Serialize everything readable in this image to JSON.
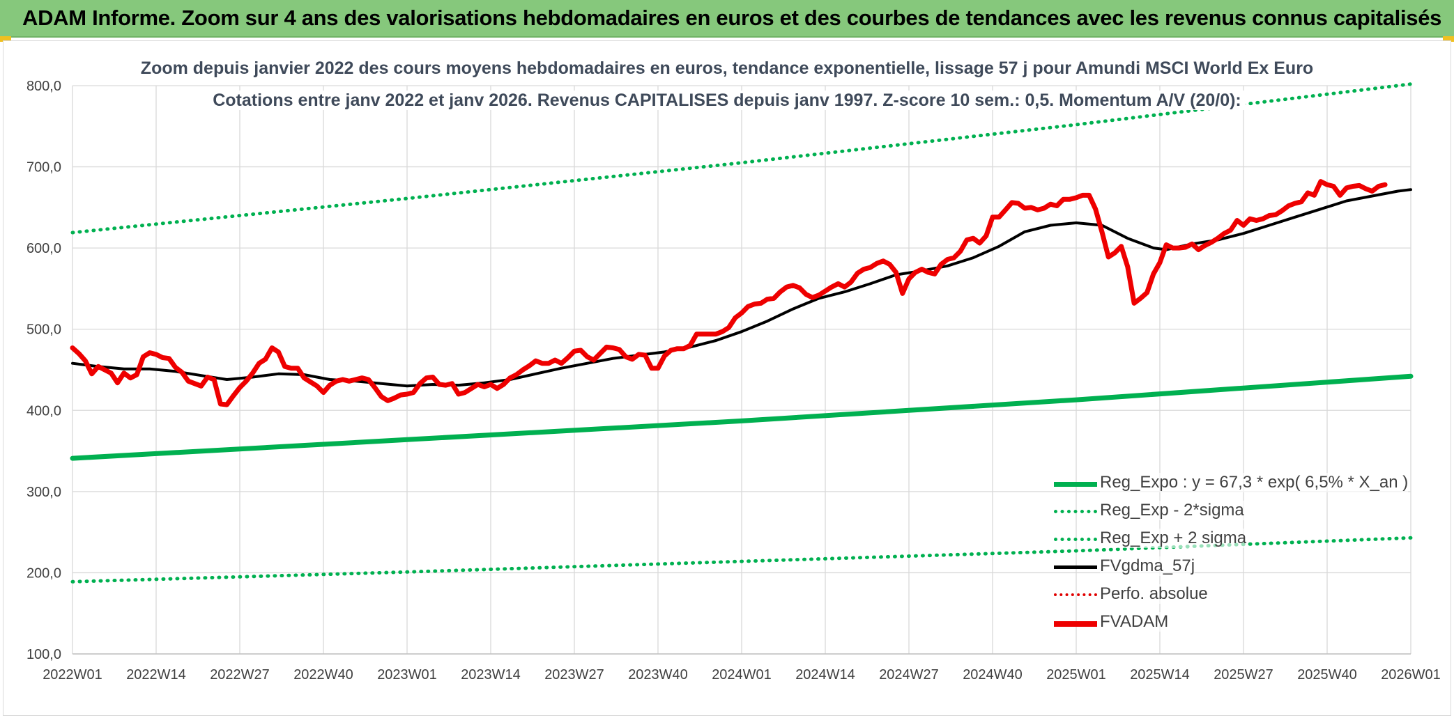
{
  "header": {
    "title": "ADAM Informe. Zoom sur 4 ans des valorisations hebdomadaires en euros et des courbes de tendances avec les revenus connus capitalisés"
  },
  "colors": {
    "banner": "#86c87c",
    "trend_green": "#00b050",
    "smoothed_black": "#000000",
    "fvadam_red": "#ee0000",
    "perfo_red": "#e00000"
  },
  "chart_data": {
    "type": "line",
    "title": "Zoom depuis janvier 2022 des cours moyens hebdomadaires en euros, tendance exponentielle, lissage 57 j pour Amundi MSCI World Ex Euro",
    "subtitle": "Cotations entre janv 2022 et janv 2026. Revenus CAPITALISES depuis janv 1997. Z-score 10 sem.: 0,5. Momentum A/V (20/0):",
    "xlabel": "",
    "ylabel": "",
    "ylim": [
      100,
      800
    ],
    "yticks": [
      "800,0",
      "700,0",
      "600,0",
      "500,0",
      "400,0",
      "300,0",
      "200,0",
      "100,0"
    ],
    "x_ticks": [
      "2022W01",
      "2022W14",
      "2022W27",
      "2022W40",
      "2023W01",
      "2023W14",
      "2023W27",
      "2023W40",
      "2024W01",
      "2024W14",
      "2024W27",
      "2024W40",
      "2025W01",
      "2025W14",
      "2025W27",
      "2025W40",
      "2026W01"
    ],
    "x_range_weeks": [
      0,
      208
    ],
    "grid": "vertical and horizontal",
    "legend_position": "bottom-right",
    "series": [
      {
        "name": "Reg_Expo : y = 67,3 * exp( 6,5% *  X_an )",
        "style": "solid-green",
        "points": [
          [
            0,
            341
          ],
          [
            52,
            364
          ],
          [
            104,
            387
          ],
          [
            156,
            413
          ],
          [
            208,
            442
          ]
        ]
      },
      {
        "name": "Reg_Exp - 2*sigma",
        "style": "dotted-green",
        "points": [
          [
            0,
            189
          ],
          [
            52,
            201
          ],
          [
            104,
            214
          ],
          [
            156,
            227
          ],
          [
            208,
            243
          ]
        ]
      },
      {
        "name": "Reg_Exp + 2 sigma",
        "style": "dotted-green",
        "points": [
          [
            0,
            619
          ],
          [
            52,
            661
          ],
          [
            104,
            705
          ],
          [
            156,
            752
          ],
          [
            208,
            802
          ]
        ]
      },
      {
        "name": "FVgdma_57j",
        "style": "solid-black",
        "points": [
          [
            0,
            458
          ],
          [
            4,
            454
          ],
          [
            8,
            451
          ],
          [
            12,
            451
          ],
          [
            16,
            448
          ],
          [
            20,
            443
          ],
          [
            24,
            438
          ],
          [
            28,
            441
          ],
          [
            32,
            445
          ],
          [
            36,
            444
          ],
          [
            40,
            438
          ],
          [
            44,
            436
          ],
          [
            48,
            433
          ],
          [
            52,
            430
          ],
          [
            56,
            432
          ],
          [
            60,
            431
          ],
          [
            64,
            434
          ],
          [
            68,
            438
          ],
          [
            72,
            445
          ],
          [
            76,
            452
          ],
          [
            80,
            458
          ],
          [
            84,
            464
          ],
          [
            88,
            468
          ],
          [
            92,
            472
          ],
          [
            96,
            478
          ],
          [
            100,
            486
          ],
          [
            104,
            497
          ],
          [
            108,
            510
          ],
          [
            112,
            525
          ],
          [
            116,
            538
          ],
          [
            120,
            546
          ],
          [
            124,
            556
          ],
          [
            128,
            567
          ],
          [
            132,
            572
          ],
          [
            136,
            578
          ],
          [
            140,
            588
          ],
          [
            144,
            602
          ],
          [
            148,
            620
          ],
          [
            152,
            628
          ],
          [
            156,
            631
          ],
          [
            160,
            628
          ],
          [
            164,
            612
          ],
          [
            168,
            600
          ],
          [
            170,
            598
          ],
          [
            174,
            605
          ],
          [
            178,
            610
          ],
          [
            182,
            618
          ],
          [
            186,
            628
          ],
          [
            190,
            638
          ],
          [
            194,
            648
          ],
          [
            198,
            658
          ],
          [
            202,
            664
          ],
          [
            206,
            670
          ],
          [
            208,
            672
          ]
        ]
      },
      {
        "name": "Perfo. absolue",
        "style": "dotted-red",
        "points": []
      },
      {
        "name": "FVADAM",
        "style": "solid-red",
        "points": [
          [
            0,
            477
          ],
          [
            1,
            470
          ],
          [
            2,
            461
          ],
          [
            3,
            445
          ],
          [
            4,
            454
          ],
          [
            5,
            450
          ],
          [
            6,
            446
          ],
          [
            7,
            434
          ],
          [
            8,
            446
          ],
          [
            9,
            440
          ],
          [
            10,
            444
          ],
          [
            11,
            466
          ],
          [
            12,
            471
          ],
          [
            13,
            469
          ],
          [
            14,
            465
          ],
          [
            15,
            464
          ],
          [
            16,
            453
          ],
          [
            17,
            447
          ],
          [
            18,
            436
          ],
          [
            19,
            433
          ],
          [
            20,
            430
          ],
          [
            21,
            441
          ],
          [
            22,
            438
          ],
          [
            23,
            408
          ],
          [
            24,
            407
          ],
          [
            25,
            418
          ],
          [
            26,
            428
          ],
          [
            27,
            436
          ],
          [
            28,
            446
          ],
          [
            29,
            458
          ],
          [
            30,
            463
          ],
          [
            31,
            477
          ],
          [
            32,
            472
          ],
          [
            33,
            454
          ],
          [
            34,
            452
          ],
          [
            35,
            452
          ],
          [
            36,
            440
          ],
          [
            37,
            435
          ],
          [
            38,
            430
          ],
          [
            39,
            422
          ],
          [
            40,
            431
          ],
          [
            41,
            436
          ],
          [
            42,
            438
          ],
          [
            43,
            436
          ],
          [
            44,
            438
          ],
          [
            45,
            440
          ],
          [
            46,
            438
          ],
          [
            47,
            428
          ],
          [
            48,
            417
          ],
          [
            49,
            412
          ],
          [
            50,
            415
          ],
          [
            51,
            419
          ],
          [
            52,
            420
          ],
          [
            53,
            422
          ],
          [
            54,
            433
          ],
          [
            55,
            440
          ],
          [
            56,
            441
          ],
          [
            57,
            432
          ],
          [
            58,
            431
          ],
          [
            59,
            433
          ],
          [
            60,
            420
          ],
          [
            61,
            422
          ],
          [
            62,
            427
          ],
          [
            63,
            432
          ],
          [
            64,
            429
          ],
          [
            65,
            432
          ],
          [
            66,
            427
          ],
          [
            67,
            432
          ],
          [
            68,
            440
          ],
          [
            69,
            444
          ],
          [
            70,
            450
          ],
          [
            71,
            455
          ],
          [
            72,
            461
          ],
          [
            73,
            458
          ],
          [
            74,
            458
          ],
          [
            75,
            462
          ],
          [
            76,
            458
          ],
          [
            77,
            465
          ],
          [
            78,
            473
          ],
          [
            79,
            474
          ],
          [
            80,
            466
          ],
          [
            81,
            462
          ],
          [
            82,
            470
          ],
          [
            83,
            478
          ],
          [
            84,
            477
          ],
          [
            85,
            475
          ],
          [
            86,
            466
          ],
          [
            87,
            463
          ],
          [
            88,
            469
          ],
          [
            89,
            468
          ],
          [
            90,
            452
          ],
          [
            91,
            452
          ],
          [
            92,
            467
          ],
          [
            93,
            474
          ],
          [
            94,
            476
          ],
          [
            95,
            476
          ],
          [
            96,
            480
          ],
          [
            97,
            494
          ],
          [
            98,
            494
          ],
          [
            99,
            494
          ],
          [
            100,
            494
          ],
          [
            101,
            497
          ],
          [
            102,
            502
          ],
          [
            103,
            514
          ],
          [
            104,
            520
          ],
          [
            105,
            528
          ],
          [
            106,
            531
          ],
          [
            107,
            532
          ],
          [
            108,
            537
          ],
          [
            109,
            538
          ],
          [
            110,
            546
          ],
          [
            111,
            552
          ],
          [
            112,
            554
          ],
          [
            113,
            551
          ],
          [
            114,
            543
          ],
          [
            115,
            539
          ],
          [
            116,
            542
          ],
          [
            117,
            547
          ],
          [
            118,
            552
          ],
          [
            119,
            556
          ],
          [
            120,
            552
          ],
          [
            121,
            558
          ],
          [
            122,
            569
          ],
          [
            123,
            574
          ],
          [
            124,
            576
          ],
          [
            125,
            581
          ],
          [
            126,
            584
          ],
          [
            127,
            580
          ],
          [
            128,
            570
          ],
          [
            129,
            544
          ],
          [
            130,
            562
          ],
          [
            131,
            570
          ],
          [
            132,
            574
          ],
          [
            133,
            570
          ],
          [
            134,
            568
          ],
          [
            135,
            580
          ],
          [
            136,
            586
          ],
          [
            137,
            588
          ],
          [
            138,
            596
          ],
          [
            139,
            610
          ],
          [
            140,
            612
          ],
          [
            141,
            606
          ],
          [
            142,
            615
          ],
          [
            143,
            638
          ],
          [
            144,
            638
          ],
          [
            145,
            647
          ],
          [
            146,
            656
          ],
          [
            147,
            655
          ],
          [
            148,
            649
          ],
          [
            149,
            650
          ],
          [
            150,
            647
          ],
          [
            151,
            649
          ],
          [
            152,
            654
          ],
          [
            153,
            652
          ],
          [
            154,
            660
          ],
          [
            155,
            660
          ],
          [
            156,
            662
          ],
          [
            157,
            665
          ],
          [
            158,
            665
          ],
          [
            159,
            648
          ],
          [
            160,
            620
          ],
          [
            161,
            589
          ],
          [
            162,
            594
          ],
          [
            163,
            602
          ],
          [
            164,
            577
          ],
          [
            165,
            532
          ],
          [
            166,
            538
          ],
          [
            167,
            545
          ],
          [
            168,
            568
          ],
          [
            169,
            582
          ],
          [
            170,
            604
          ],
          [
            171,
            600
          ],
          [
            172,
            600
          ],
          [
            173,
            601
          ],
          [
            174,
            605
          ],
          [
            175,
            598
          ],
          [
            176,
            603
          ],
          [
            177,
            607
          ],
          [
            178,
            612
          ],
          [
            179,
            618
          ],
          [
            180,
            622
          ],
          [
            181,
            634
          ],
          [
            182,
            628
          ],
          [
            183,
            636
          ],
          [
            184,
            634
          ],
          [
            185,
            636
          ],
          [
            186,
            640
          ],
          [
            187,
            641
          ],
          [
            188,
            646
          ],
          [
            189,
            652
          ],
          [
            190,
            655
          ],
          [
            191,
            657
          ],
          [
            192,
            668
          ],
          [
            193,
            665
          ],
          [
            194,
            682
          ],
          [
            195,
            678
          ],
          [
            196,
            676
          ],
          [
            197,
            665
          ],
          [
            198,
            674
          ],
          [
            199,
            676
          ],
          [
            200,
            677
          ],
          [
            201,
            673
          ],
          [
            202,
            670
          ],
          [
            203,
            676
          ],
          [
            204,
            678
          ]
        ]
      }
    ]
  }
}
